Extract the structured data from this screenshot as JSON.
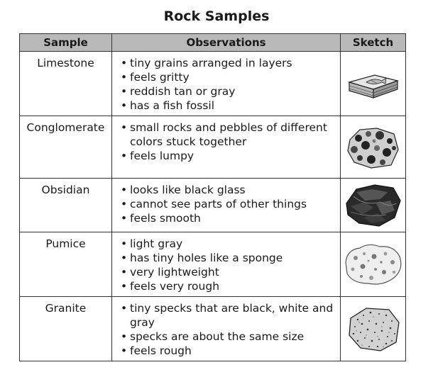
{
  "title": "Rock Samples",
  "headers": {
    "sample": "Sample",
    "observations": "Observations",
    "sketch": "Sketch"
  },
  "rows": [
    {
      "sample": "Limestone",
      "observations": [
        "tiny grains arranged in layers",
        "feels gritty",
        "reddish tan or gray",
        "has a fish fossil"
      ],
      "sketch_icon": "limestone-rock-icon"
    },
    {
      "sample": "Conglomerate",
      "observations": [
        "small rocks and pebbles of different colors stuck together",
        "feels lumpy"
      ],
      "sketch_icon": "conglomerate-rock-icon"
    },
    {
      "sample": "Obsidian",
      "observations": [
        "looks like black glass",
        "cannot see parts of other things",
        "feels smooth"
      ],
      "sketch_icon": "obsidian-rock-icon"
    },
    {
      "sample": "Pumice",
      "observations": [
        "light gray",
        "has tiny holes like a sponge",
        "very lightweight",
        "feels very rough"
      ],
      "sketch_icon": "pumice-rock-icon"
    },
    {
      "sample": "Granite",
      "observations": [
        "tiny specks that are black, white and gray",
        "specks are about the same size",
        "feels rough"
      ],
      "sketch_icon": "granite-rock-icon"
    }
  ]
}
